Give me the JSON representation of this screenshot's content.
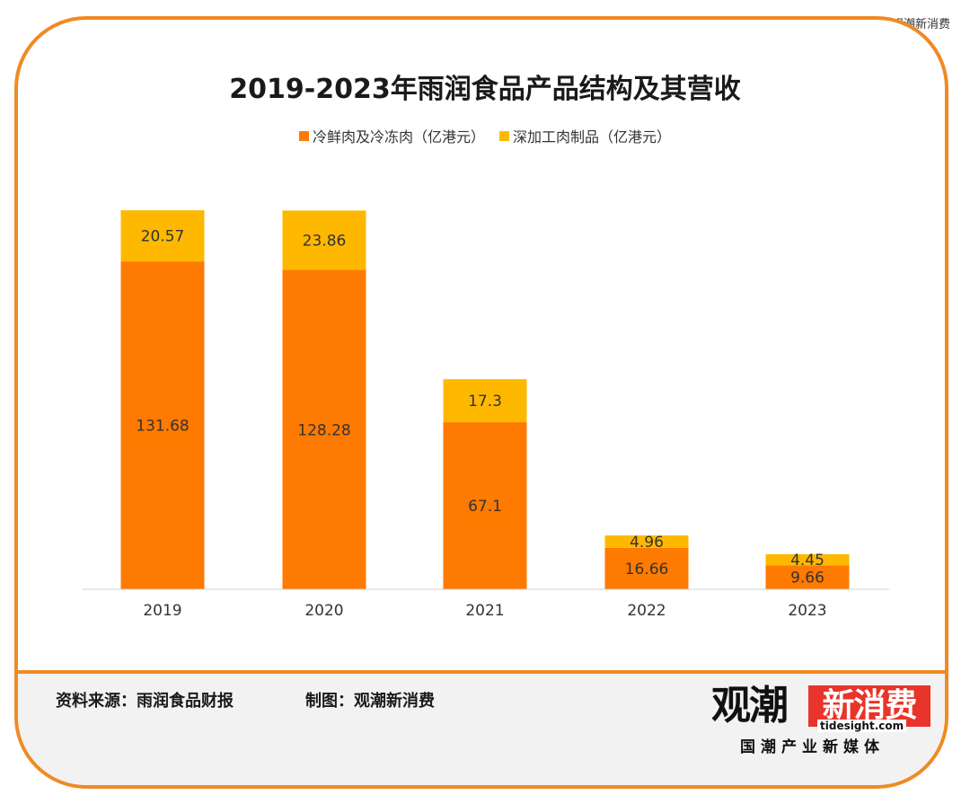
{
  "corner_credit": "@观潮新消费",
  "chart_data": {
    "type": "bar",
    "stacked": true,
    "title": "2019-2023年雨润食品产品结构及其营收",
    "categories": [
      "2019",
      "2020",
      "2021",
      "2022",
      "2023"
    ],
    "series": [
      {
        "name": "冷鲜肉及冷冻肉（亿港元）",
        "values": [
          131.68,
          128.28,
          67.1,
          16.66,
          9.66
        ],
        "color": "#ff7a00",
        "value_labels": [
          "131.68",
          "128.28",
          "67.1",
          "16.66",
          "9.66"
        ]
      },
      {
        "name": "深加工肉制品（亿港元）",
        "values": [
          20.57,
          23.86,
          17.3,
          4.96,
          4.45
        ],
        "color": "#ffb800",
        "value_labels": [
          "20.57",
          "23.86",
          "17.3",
          "4.96",
          "4.45"
        ]
      }
    ],
    "ylim": [
      0,
      153
    ],
    "grid": false,
    "legend_position": "top-center",
    "xlabel": "",
    "ylabel": ""
  },
  "footer": {
    "source": "资料来源：雨润食品财报",
    "made_by": "制图：观潮新消费"
  },
  "brand": {
    "name_main": "观潮",
    "name_accent": "新消费",
    "url": "tidesight.com",
    "tagline": "国潮产业新媒体"
  },
  "colors": {
    "frame": "#f08a24",
    "series_fresh": "#ff7a00",
    "series_processed": "#ffb800",
    "logo_red": "#e8342a"
  }
}
